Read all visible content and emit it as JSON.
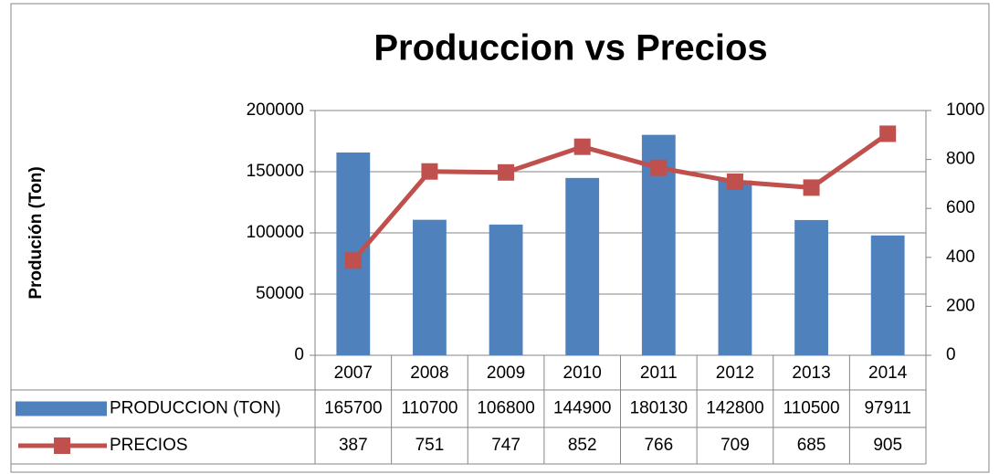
{
  "chart_data": {
    "type": "bar",
    "title": "Produccion vs Precios",
    "y_label": "Produción (Ton)",
    "categories": [
      "2007",
      "2008",
      "2009",
      "2010",
      "2011",
      "2012",
      "2013",
      "2014"
    ],
    "series": [
      {
        "name": "PRODUCCION (TON)",
        "color": "#4f81bd",
        "type": "bar",
        "values": [
          165700,
          110700,
          106800,
          144900,
          180130,
          142800,
          110500,
          97911
        ]
      },
      {
        "name": "PRECIOS",
        "color": "#c0504d",
        "type": "line",
        "axis": "y2",
        "values": [
          387,
          751,
          747,
          852,
          766,
          709,
          685,
          905
        ]
      }
    ],
    "ylim": [
      0,
      200000
    ],
    "yticks": [
      0,
      50000,
      100000,
      150000,
      200000
    ],
    "y2lim": [
      0,
      1000
    ],
    "y2ticks": [
      0,
      200,
      400,
      600,
      800,
      1000
    ],
    "grid": true,
    "data_table": true
  }
}
